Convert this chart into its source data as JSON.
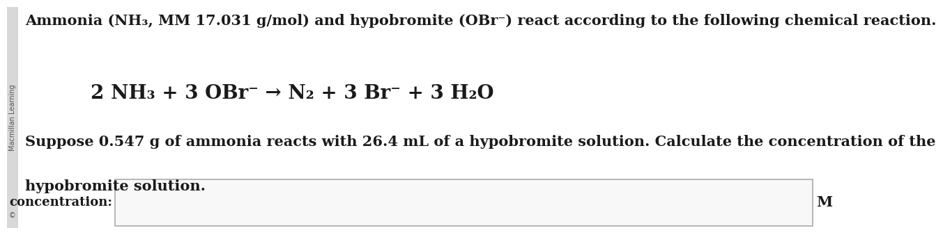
{
  "bg_color": "#ffffff",
  "text_color": "#1a1a1a",
  "line1": "Ammonia (NH₃, MM 17.031 g/mol) and hypobromite (OBr⁻) react according to the following chemical reaction.",
  "equation": "2 NH₃ + 3 OBr⁻ → N₂ + 3 Br⁻ + 3 H₂O",
  "line3": "Suppose 0.547 g of ammonia reacts with 26.4 mL of a hypobromite solution. Calculate the concentration of the",
  "line4": "hypobromite solution.",
  "label_conc": "concentration:",
  "label_M": "M",
  "sidebar_text": "Macmillan Learning",
  "sidebar_color": "#555555",
  "font_size_main": 15,
  "font_size_eq": 20,
  "font_size_label": 13,
  "font_size_sidebar": 7
}
